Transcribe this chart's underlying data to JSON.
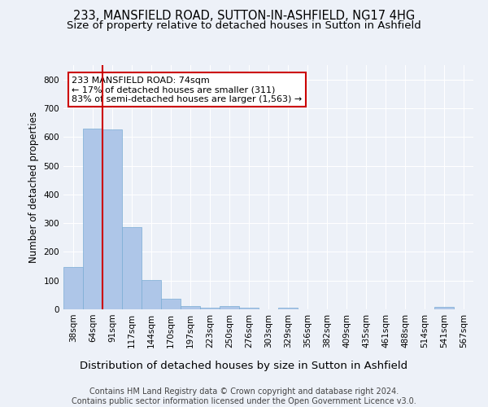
{
  "title1": "233, MANSFIELD ROAD, SUTTON-IN-ASHFIELD, NG17 4HG",
  "title2": "Size of property relative to detached houses in Sutton in Ashfield",
  "xlabel": "Distribution of detached houses by size in Sutton in Ashfield",
  "ylabel": "Number of detached properties",
  "categories": [
    "38sqm",
    "64sqm",
    "91sqm",
    "117sqm",
    "144sqm",
    "170sqm",
    "197sqm",
    "223sqm",
    "250sqm",
    "276sqm",
    "303sqm",
    "329sqm",
    "356sqm",
    "382sqm",
    "409sqm",
    "435sqm",
    "461sqm",
    "488sqm",
    "514sqm",
    "541sqm",
    "567sqm"
  ],
  "values": [
    148,
    630,
    625,
    287,
    102,
    38,
    12,
    5,
    10,
    7,
    0,
    5,
    0,
    0,
    0,
    0,
    0,
    0,
    0,
    8,
    0
  ],
  "bar_color": "#aec6e8",
  "bar_edge_color": "#7aadd4",
  "marker_color": "#cc0000",
  "annotation_text": "233 MANSFIELD ROAD: 74sqm\n← 17% of detached houses are smaller (311)\n83% of semi-detached houses are larger (1,563) →",
  "annotation_box_color": "#ffffff",
  "annotation_box_edge_color": "#cc0000",
  "ylim": [
    0,
    850
  ],
  "yticks": [
    0,
    100,
    200,
    300,
    400,
    500,
    600,
    700,
    800
  ],
  "background_color": "#edf1f8",
  "plot_bg_color": "#edf1f8",
  "footer_text": "Contains HM Land Registry data © Crown copyright and database right 2024.\nContains public sector information licensed under the Open Government Licence v3.0.",
  "title1_fontsize": 10.5,
  "title2_fontsize": 9.5,
  "xlabel_fontsize": 9.5,
  "ylabel_fontsize": 8.5,
  "tick_fontsize": 7.5,
  "footer_fontsize": 7.0
}
